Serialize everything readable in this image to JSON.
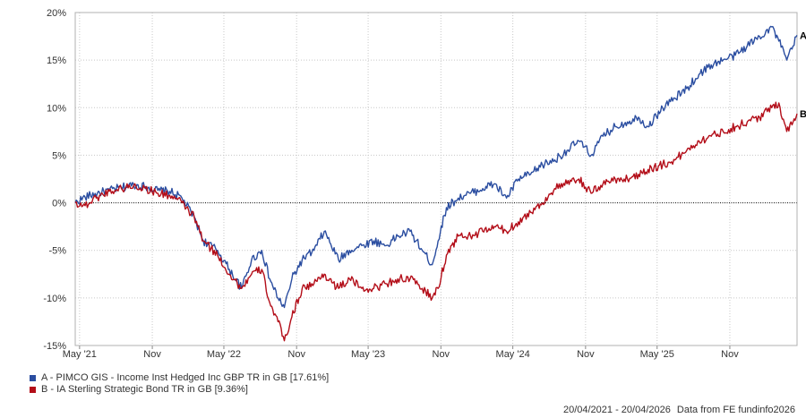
{
  "chart_data": {
    "type": "line",
    "x_tick_labels": [
      "May '21",
      "Nov",
      "May '22",
      "Nov",
      "May '23",
      "Nov",
      "May '24",
      "Nov",
      "May '25",
      "Nov"
    ],
    "x_tick_dates": [
      "2021-05-01",
      "2021-11-01",
      "2022-05-01",
      "2022-11-01",
      "2023-05-01",
      "2023-11-01",
      "2024-05-01",
      "2024-11-01",
      "2025-05-01",
      "2025-11-01"
    ],
    "xlim": [
      "2021-04-20",
      "2026-04-20"
    ],
    "ylim": [
      -15,
      20
    ],
    "y_ticks": [
      20,
      15,
      10,
      5,
      0,
      -5,
      -10,
      -15
    ],
    "y_tick_labels": [
      "20%",
      "15%",
      "10%",
      "5%",
      "0%",
      "-5%",
      "-10%",
      "-15%"
    ],
    "grid": true,
    "zero_line": "dotted",
    "series": [
      {
        "name": "A - PIMCO GIS - Income Inst Hedged Inc GBP TR in GB [17.61%]",
        "end_label": "A",
        "color": "#2a4da0",
        "x": [
          "2021-04-20",
          "2021-05-15",
          "2021-06-15",
          "2021-07-15",
          "2021-08-15",
          "2021-09-15",
          "2021-10-15",
          "2021-11-15",
          "2021-12-15",
          "2022-01-15",
          "2022-02-15",
          "2022-03-10",
          "2022-04-15",
          "2022-05-15",
          "2022-06-15",
          "2022-07-10",
          "2022-08-05",
          "2022-08-25",
          "2022-09-15",
          "2022-10-01",
          "2022-10-20",
          "2022-11-15",
          "2022-12-15",
          "2023-01-10",
          "2023-02-15",
          "2023-03-15",
          "2023-04-15",
          "2023-05-15",
          "2023-06-15",
          "2023-07-15",
          "2023-08-15",
          "2023-09-15",
          "2023-10-10",
          "2023-10-25",
          "2023-11-15",
          "2023-12-15",
          "2024-01-15",
          "2024-02-15",
          "2024-03-15",
          "2024-04-15",
          "2024-05-15",
          "2024-06-15",
          "2024-07-15",
          "2024-08-15",
          "2024-09-15",
          "2024-10-15",
          "2024-11-15",
          "2024-12-15",
          "2025-01-15",
          "2025-02-15",
          "2025-03-15",
          "2025-04-08",
          "2025-05-15",
          "2025-06-15",
          "2025-07-15",
          "2025-08-15",
          "2025-09-15",
          "2025-10-15",
          "2025-11-15",
          "2025-12-15",
          "2026-01-15",
          "2026-02-15",
          "2026-03-05",
          "2026-03-25",
          "2026-04-10",
          "2026-04-20"
        ],
        "values": [
          0,
          0.6,
          1.0,
          1.3,
          1.6,
          1.9,
          1.7,
          1.3,
          1.2,
          0.5,
          -1.5,
          -4.0,
          -5.0,
          -7.0,
          -9.0,
          -6.0,
          -5.0,
          -8.0,
          -10.0,
          -11.0,
          -8.0,
          -6.0,
          -5.0,
          -3.0,
          -6.0,
          -5.0,
          -4.5,
          -4.0,
          -4.5,
          -3.5,
          -3.0,
          -5.0,
          -6.5,
          -4.0,
          -0.5,
          0.5,
          1.0,
          1.5,
          2.0,
          0.5,
          2.5,
          3.0,
          4.0,
          4.5,
          5.5,
          6.5,
          5.0,
          7.0,
          8.0,
          8.5,
          9.0,
          8.0,
          10.0,
          11.0,
          12.0,
          13.5,
          14.5,
          15.0,
          15.5,
          16.5,
          17.5,
          18.5,
          17.0,
          15.0,
          16.5,
          17.61
        ]
      },
      {
        "name": "B - IA Sterling Strategic Bond TR in GB [9.36%]",
        "end_label": "B",
        "color": "#b30d18",
        "x": [
          "2021-04-20",
          "2021-05-15",
          "2021-06-15",
          "2021-07-15",
          "2021-08-15",
          "2021-09-15",
          "2021-10-15",
          "2021-11-15",
          "2021-12-15",
          "2022-01-15",
          "2022-02-15",
          "2022-03-10",
          "2022-04-15",
          "2022-05-15",
          "2022-06-15",
          "2022-07-10",
          "2022-08-05",
          "2022-08-25",
          "2022-09-15",
          "2022-10-01",
          "2022-10-20",
          "2022-11-15",
          "2022-12-15",
          "2023-01-10",
          "2023-02-15",
          "2023-03-15",
          "2023-04-15",
          "2023-05-15",
          "2023-06-15",
          "2023-07-15",
          "2023-08-15",
          "2023-09-15",
          "2023-10-10",
          "2023-10-25",
          "2023-11-15",
          "2023-12-15",
          "2024-01-15",
          "2024-02-15",
          "2024-03-15",
          "2024-04-15",
          "2024-05-15",
          "2024-06-15",
          "2024-07-15",
          "2024-08-15",
          "2024-09-15",
          "2024-10-15",
          "2024-11-15",
          "2024-12-15",
          "2025-01-15",
          "2025-02-15",
          "2025-03-15",
          "2025-04-08",
          "2025-05-15",
          "2025-06-15",
          "2025-07-15",
          "2025-08-15",
          "2025-09-15",
          "2025-10-15",
          "2025-11-15",
          "2025-12-15",
          "2026-01-15",
          "2026-02-15",
          "2026-03-05",
          "2026-03-25",
          "2026-04-10",
          "2026-04-20"
        ],
        "values": [
          0,
          -0.3,
          0.6,
          1.2,
          1.5,
          1.8,
          1.5,
          1.0,
          0.8,
          0,
          -1.5,
          -4.0,
          -5.5,
          -7.5,
          -9.0,
          -7.5,
          -7.0,
          -10.5,
          -12.5,
          -14.5,
          -12.0,
          -9.0,
          -8.5,
          -7.5,
          -9.0,
          -8.0,
          -9.0,
          -9.0,
          -8.5,
          -8.0,
          -8.0,
          -9.0,
          -10.0,
          -9.0,
          -5.5,
          -3.5,
          -3.5,
          -3.0,
          -2.5,
          -3.0,
          -2.0,
          -1.0,
          0,
          1.5,
          2.0,
          2.5,
          1.0,
          2.0,
          2.5,
          2.5,
          3.0,
          3.5,
          4.0,
          4.5,
          5.5,
          6.5,
          7.0,
          7.5,
          8.0,
          8.5,
          9.0,
          10.0,
          10.5,
          7.5,
          8.5,
          9.36
        ]
      }
    ]
  },
  "legend": {
    "items": [
      {
        "label": "A - PIMCO GIS - Income Inst Hedged Inc GBP TR in GB [17.61%]",
        "color": "#2a4da0"
      },
      {
        "label": "B - IA Sterling Strategic Bond TR in GB [9.36%]",
        "color": "#b30d18"
      }
    ]
  },
  "footer": {
    "date_range": "20/04/2021 - 20/04/2026",
    "source": "Data from FE fundinfo2026"
  }
}
